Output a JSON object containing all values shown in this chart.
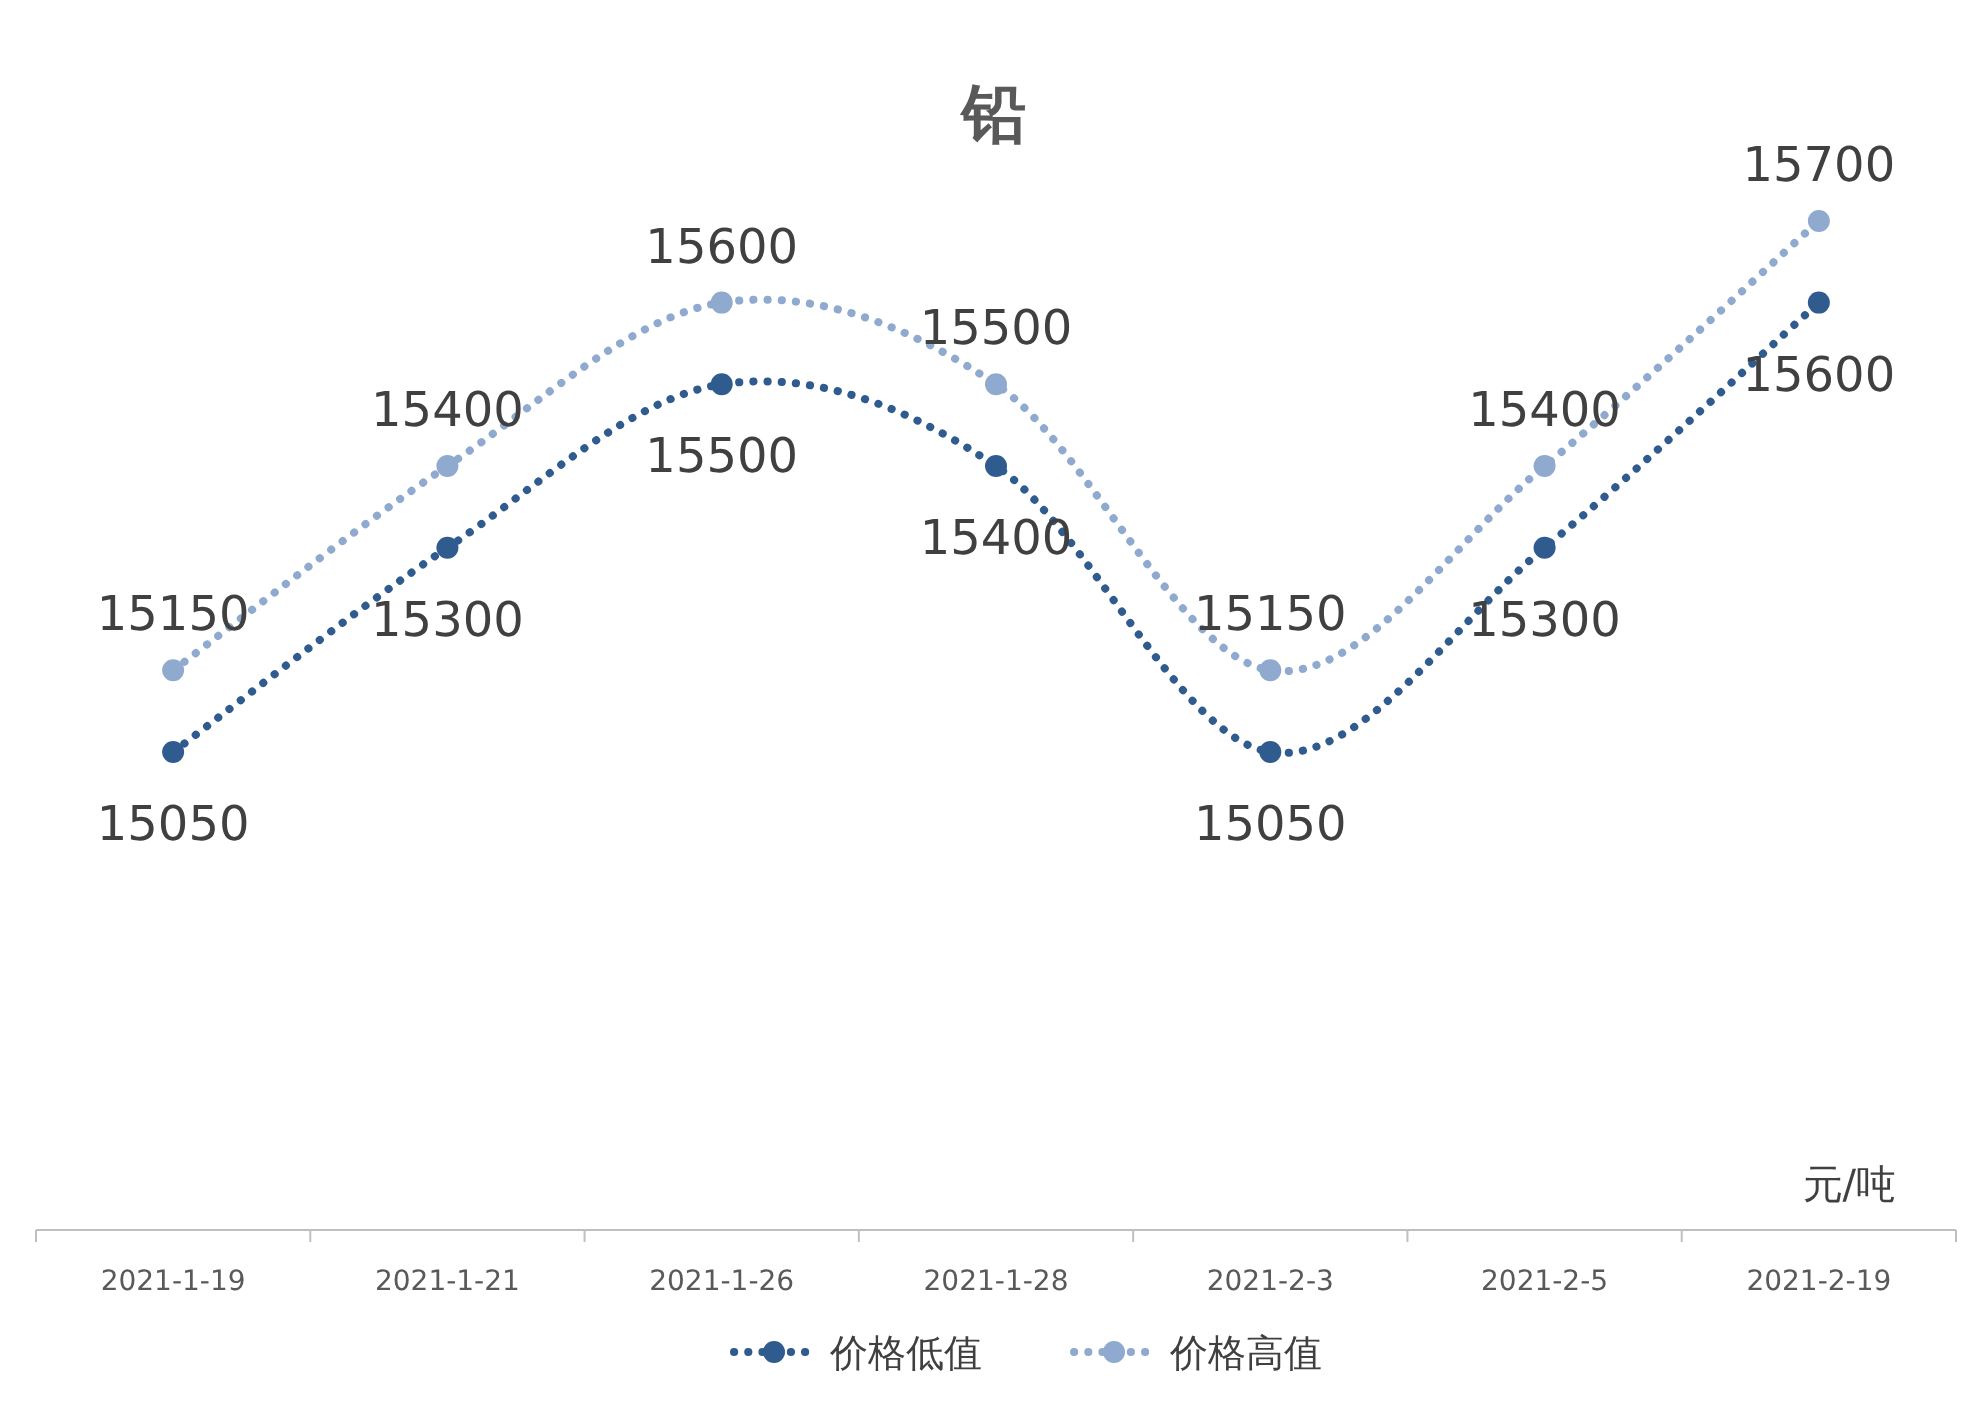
{
  "chart_data": {
    "type": "line",
    "title": "铅",
    "categories": [
      "2021-1-19",
      "2021-1-21",
      "2021-1-26",
      "2021-1-28",
      "2021-2-3",
      "2021-2-5",
      "2021-2-19"
    ],
    "series": [
      {
        "name": "价格低值",
        "color": "#2f5b8e",
        "values": [
          15050,
          15300,
          15500,
          15400,
          15050,
          15300,
          15600
        ]
      },
      {
        "name": "价格高值",
        "color": "#8fa9cf",
        "values": [
          15150,
          15400,
          15600,
          15500,
          15150,
          15400,
          15700
        ]
      }
    ],
    "annotations": [
      "元/吨"
    ],
    "data_labels": true,
    "marker": "circle",
    "line_style": "dotted",
    "legend": "bottom"
  }
}
